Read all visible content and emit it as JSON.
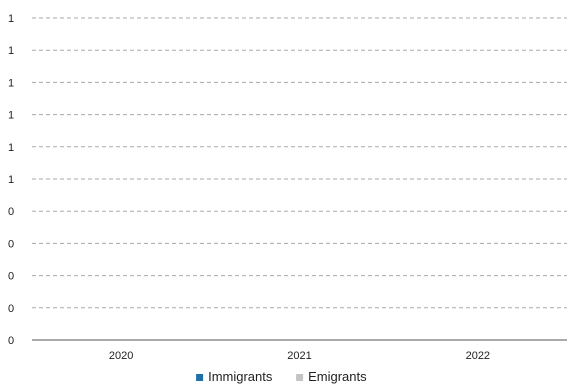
{
  "chart_data": {
    "type": "bar",
    "categories": [
      "2020",
      "2021",
      "2022"
    ],
    "series": [
      {
        "name": "Immigrants",
        "color": "#1f6fa8",
        "values": [
          0,
          0,
          0
        ]
      },
      {
        "name": "Emigrants",
        "color": "#c4c4c4",
        "values": [
          0,
          0,
          0
        ]
      }
    ],
    "y_tick_labels": [
      "0",
      "0",
      "0",
      "0",
      "0",
      "1",
      "1",
      "1",
      "1",
      "1",
      "1"
    ],
    "ylim": [
      0,
      1
    ],
    "grid": true,
    "grid_style": "dashed",
    "legend_position": "bottom-center",
    "colors": {
      "grid": "#aaaaaa",
      "axis": "#555555",
      "text": "#222222"
    }
  }
}
